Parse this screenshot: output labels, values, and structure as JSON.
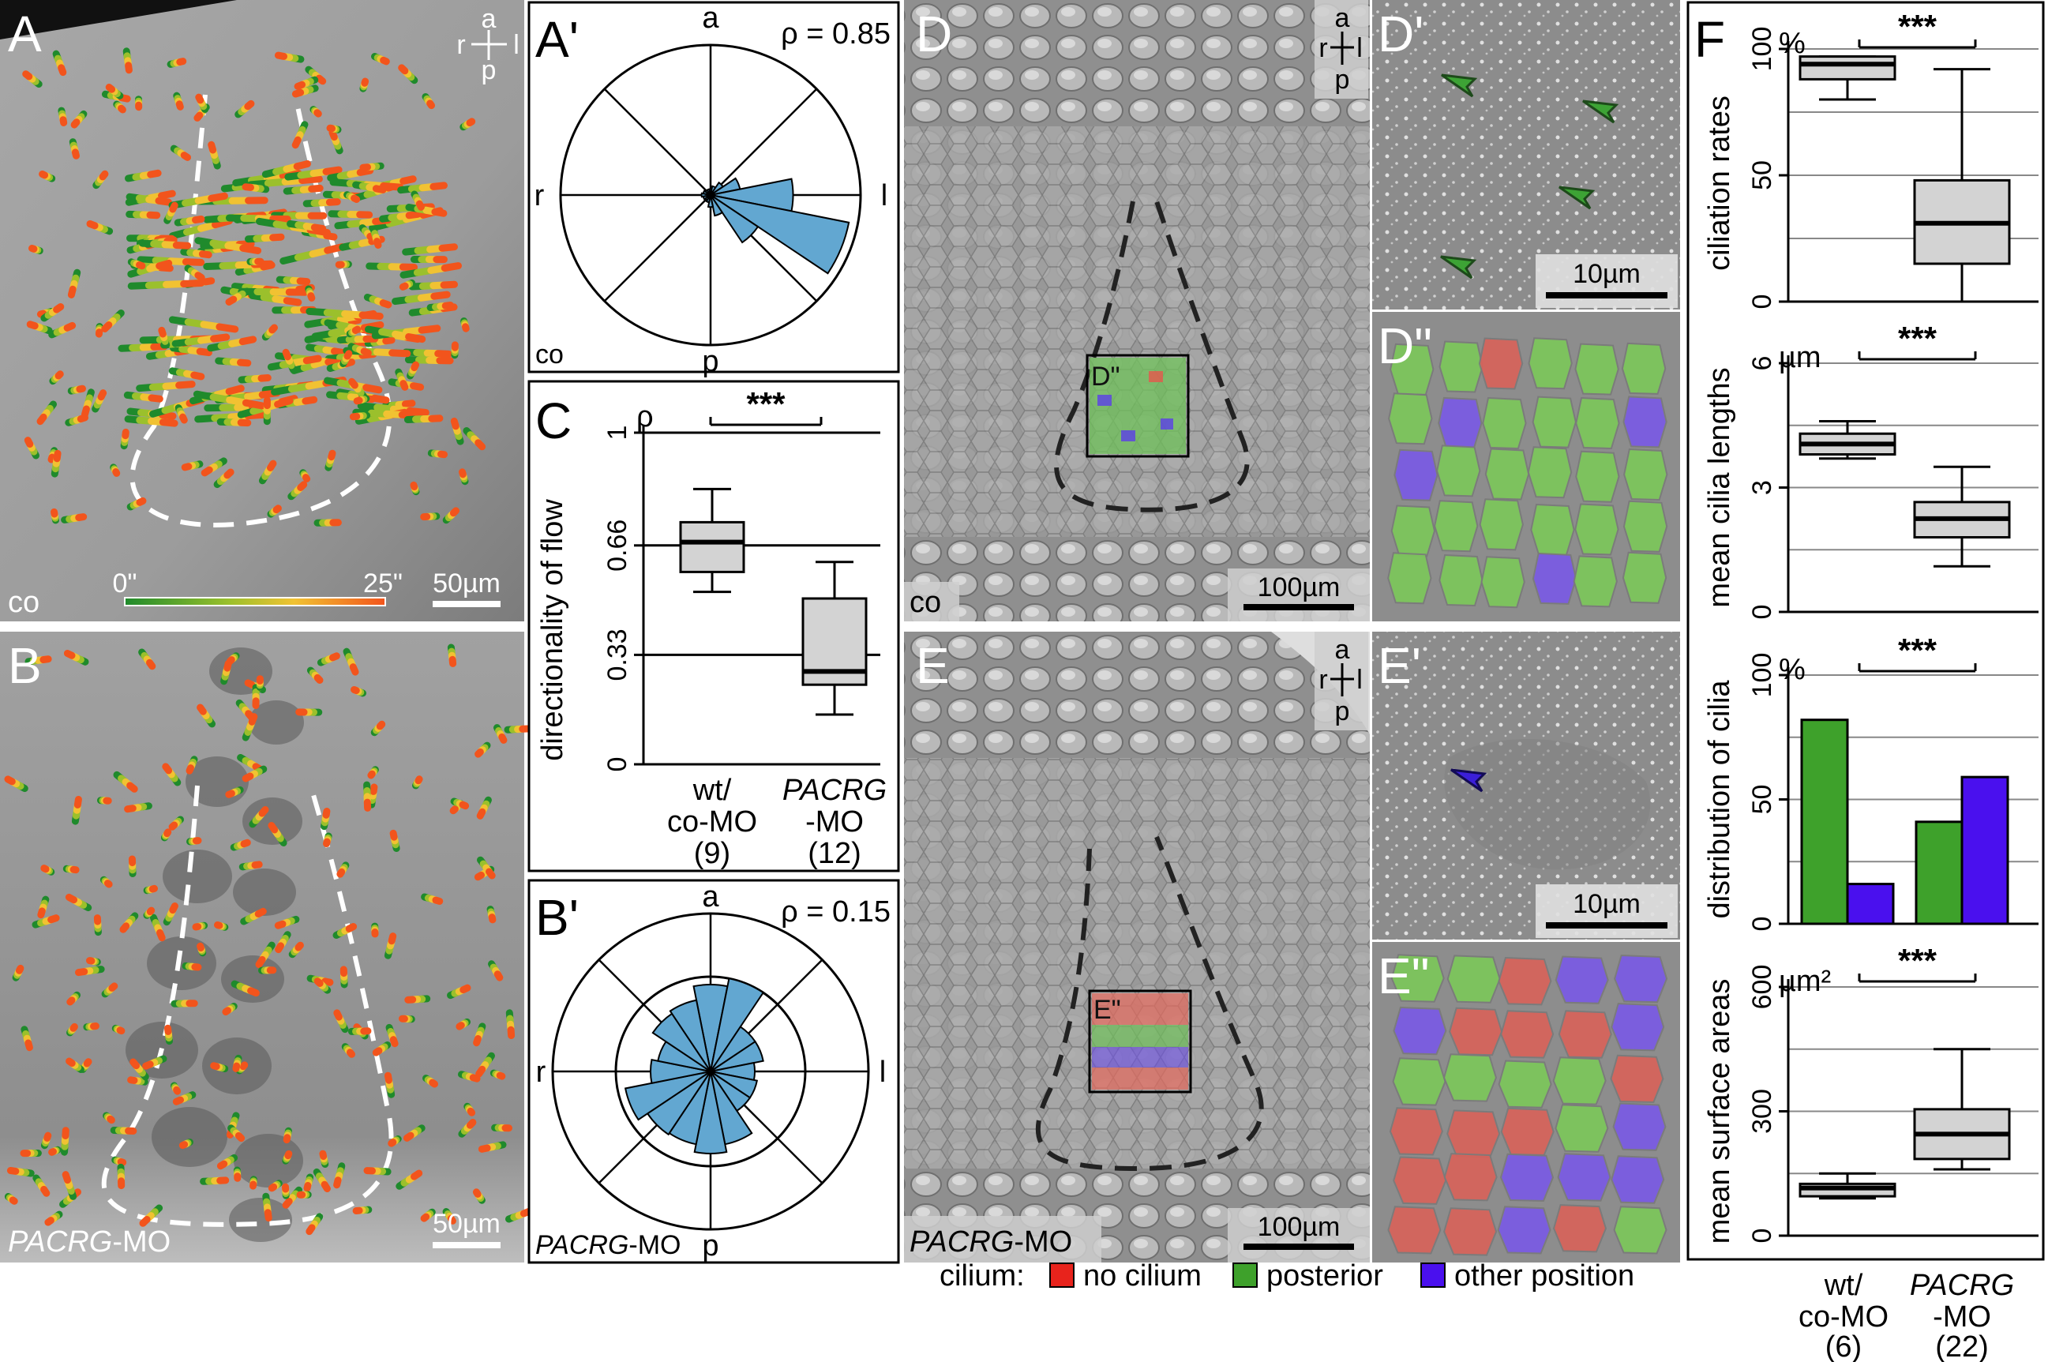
{
  "orientation": {
    "a": "a",
    "r": "r",
    "l": "l",
    "p": "p"
  },
  "panels": {
    "A": {
      "letter": "A",
      "condition": "co",
      "scale": "50µm",
      "time_start": "0\"",
      "time_end": "25\""
    },
    "B": {
      "letter": "B",
      "condition_italic": "PACRG",
      "condition_suffix": "-MO",
      "scale": "50µm"
    },
    "A_prime": {
      "letter": "A'",
      "rho": "ρ = 0.85",
      "condition": "co"
    },
    "B_prime": {
      "letter": "B'",
      "rho": "ρ = 0.15",
      "condition_italic": "PACRG",
      "condition_suffix": "-MO"
    },
    "C": {
      "letter": "C",
      "rho_symbol": "ρ",
      "sig": "***"
    },
    "D": {
      "letter": "D",
      "condition": "co",
      "scale": "100µm",
      "inset": "D\""
    },
    "D_prime": {
      "letter": "D'",
      "scale": "10µm"
    },
    "D_dprime": {
      "letter": "D\""
    },
    "E": {
      "letter": "E",
      "condition_italic": "PACRG",
      "condition_suffix": "-MO",
      "scale": "100µm",
      "inset": "E\""
    },
    "E_prime": {
      "letter": "E'",
      "scale": "10µm"
    },
    "E_dprime": {
      "letter": "E\""
    },
    "F": {
      "letter": "F",
      "sig": "***"
    }
  },
  "legend": {
    "title": "cilium:",
    "items": [
      {
        "label": "no cilium",
        "color": "#e8231c"
      },
      {
        "label": "posterior",
        "color": "#3ea12b"
      },
      {
        "label": "other position",
        "color": "#4a10ee"
      }
    ]
  },
  "groups": {
    "C": {
      "wt_line1": "wt/",
      "wt_line2": "co-MO",
      "wt_n": "(9)",
      "pacrg_italic": "PACRG",
      "pacrg_suffix": "-MO",
      "pacrg_n": "(12)"
    },
    "F": {
      "wt_line1": "wt/",
      "wt_line2": "co-MO",
      "wt_n": "(6)",
      "pacrg_italic": "PACRG",
      "pacrg_suffix": "-MO",
      "pacrg_n": "(22)"
    }
  },
  "chart_data": [
    {
      "type": "polar-histogram",
      "panel": "A'",
      "directions": [
        "a",
        "l",
        "p",
        "r"
      ],
      "sector_width_deg": 22.5,
      "radii_rel": [
        0.04,
        0.06,
        0.1,
        0.2,
        0.55,
        0.94,
        0.38,
        0.14,
        0.08,
        0.05,
        0.04,
        0.05,
        0.06,
        0.05,
        0.04,
        0.04
      ],
      "rho": 0.85
    },
    {
      "type": "polar-histogram",
      "panel": "B'",
      "directions": [
        "a",
        "l",
        "p",
        "r"
      ],
      "sector_width_deg": 22.5,
      "radii_rel": [
        0.55,
        0.6,
        0.34,
        0.34,
        0.28,
        0.3,
        0.3,
        0.47,
        0.52,
        0.47,
        0.48,
        0.55,
        0.38,
        0.34,
        0.44,
        0.46
      ],
      "rho": 0.15
    },
    {
      "type": "boxplot",
      "panel": "C",
      "ylabel": "directionality of flow",
      "yticks": [
        "0",
        "0.33",
        "0.66",
        "1"
      ],
      "ylim": [
        0,
        1
      ],
      "reference_lines": [
        0.33,
        0.66,
        1
      ],
      "categories": [
        "wt/co-MO (9)",
        "PACRG-MO (12)"
      ],
      "boxes": [
        {
          "whisker_low": 0.52,
          "q1": 0.58,
          "median": 0.67,
          "q3": 0.73,
          "whisker_high": 0.83
        },
        {
          "whisker_low": 0.15,
          "q1": 0.24,
          "median": 0.28,
          "q3": 0.5,
          "whisker_high": 0.61
        }
      ]
    },
    {
      "type": "boxplot",
      "panel": "F",
      "unit": "%",
      "ylabel": "ciliation rates",
      "yticks": [
        "0",
        "50",
        "100"
      ],
      "ylim": [
        0,
        100
      ],
      "categories": [
        "wt/co-MO (6)",
        "PACRG-MO (22)"
      ],
      "boxes": [
        {
          "whisker_low": 80,
          "q1": 88,
          "median": 94,
          "q3": 97,
          "whisker_high": 97
        },
        {
          "whisker_low": 0,
          "q1": 15,
          "median": 31,
          "q3": 48,
          "whisker_high": 92
        }
      ]
    },
    {
      "type": "boxplot",
      "panel": "F",
      "unit": "µm",
      "ylabel": "mean cilia lengths",
      "yticks": [
        "0",
        "3",
        "6"
      ],
      "ylim": [
        0,
        6
      ],
      "categories": [
        "wt/co-MO (6)",
        "PACRG-MO (22)"
      ],
      "boxes": [
        {
          "whisker_low": 3.7,
          "q1": 3.8,
          "median": 4.05,
          "q3": 4.3,
          "whisker_high": 4.6
        },
        {
          "whisker_low": 1.1,
          "q1": 1.8,
          "median": 2.25,
          "q3": 2.65,
          "whisker_high": 3.5
        }
      ]
    },
    {
      "type": "bar",
      "panel": "F",
      "unit": "%",
      "ylabel": "distribution of cilia",
      "yticks": [
        "0",
        "50",
        "100"
      ],
      "ylim": [
        0,
        100
      ],
      "categories": [
        "wt/co-MO (6)",
        "PACRG-MO (22)"
      ],
      "series": [
        {
          "name": "posterior",
          "color": "#3ea12b",
          "values": [
            82,
            41
          ]
        },
        {
          "name": "other position",
          "color": "#4a10ee",
          "values": [
            16,
            59
          ]
        }
      ]
    },
    {
      "type": "boxplot",
      "panel": "F",
      "unit": "µm²",
      "ylabel": "mean surface areas",
      "yticks": [
        "0",
        "300",
        "600"
      ],
      "ylim": [
        0,
        600
      ],
      "categories": [
        "wt/co-MO (6)",
        "PACRG-MO (22)"
      ],
      "boxes": [
        {
          "whisker_low": 90,
          "q1": 95,
          "median": 115,
          "q3": 125,
          "whisker_high": 150
        },
        {
          "whisker_low": 160,
          "q1": 185,
          "median": 245,
          "q3": 305,
          "whisker_high": 450
        }
      ]
    }
  ]
}
